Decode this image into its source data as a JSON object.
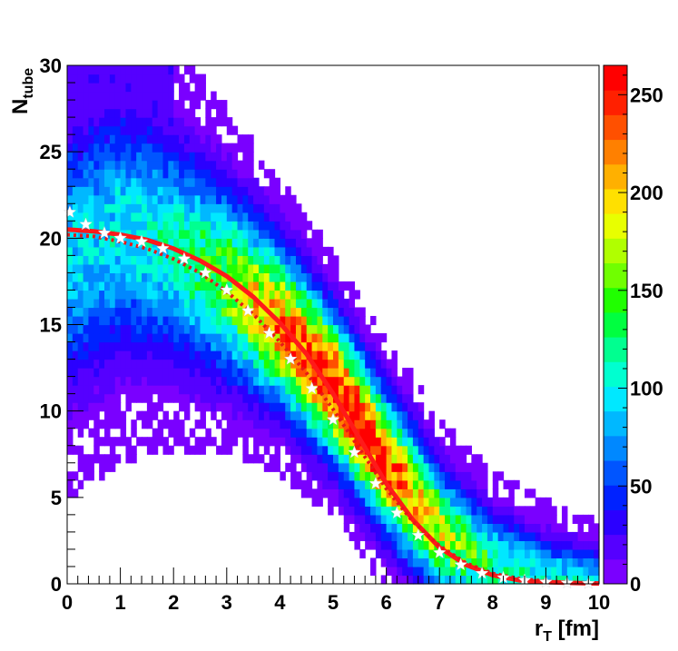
{
  "chart_data": {
    "type": "heatmap",
    "title": "",
    "xlabel": "r",
    "xlabel_sub": "T",
    "xlabel_unit": " [fm]",
    "ylabel": "N",
    "ylabel_sub": "tube",
    "xlim": [
      0,
      10
    ],
    "ylim": [
      0,
      30
    ],
    "x_ticks": [
      0,
      1,
      2,
      3,
      4,
      5,
      6,
      7,
      8,
      9,
      10
    ],
    "y_ticks": [
      0,
      5,
      10,
      15,
      20,
      25,
      30
    ],
    "grid": false,
    "colorbar": {
      "range": [
        0,
        265
      ],
      "ticks": [
        0,
        50,
        100,
        150,
        200,
        250
      ],
      "palette": [
        "#7a00ff",
        "#5500ff",
        "#2b00ff",
        "#0022ff",
        "#0055ff",
        "#0088ff",
        "#00b8ff",
        "#00e8ff",
        "#00ffd0",
        "#00ff90",
        "#00ff40",
        "#20ff00",
        "#70ff00",
        "#b0ff00",
        "#e8ff00",
        "#ffe000",
        "#ffb000",
        "#ff8000",
        "#ff5000",
        "#ff2000",
        "#ff0000"
      ]
    },
    "density_ridge": {
      "x": [
        0,
        1,
        2,
        3,
        4,
        5,
        6,
        7,
        8,
        9,
        10
      ],
      "y": [
        19.0,
        20.5,
        19.5,
        17.5,
        15.0,
        11.5,
        7.0,
        3.0,
        1.0,
        0.3,
        0.1
      ]
    },
    "series": [
      {
        "style": "solid-red",
        "x": [
          0,
          0.5,
          1,
          1.5,
          2,
          2.5,
          3,
          3.5,
          4,
          4.5,
          5,
          5.5,
          6,
          6.5,
          7,
          7.5,
          8,
          8.5,
          9,
          9.5,
          10
        ],
        "y": [
          20.5,
          20.4,
          20.2,
          19.9,
          19.4,
          18.7,
          17.8,
          16.6,
          15.1,
          13.3,
          11.0,
          8.4,
          5.8,
          3.7,
          2.1,
          1.1,
          0.5,
          0.2,
          0.1,
          0.05,
          0.02
        ]
      },
      {
        "style": "dotted-red",
        "x": [
          0,
          0.5,
          1,
          1.5,
          2,
          2.5,
          3,
          3.5,
          4,
          4.5,
          5,
          5.5,
          6,
          6.5,
          7,
          7.5,
          8,
          8.5,
          9,
          9.5,
          10
        ],
        "y": [
          20.2,
          20.1,
          19.8,
          19.4,
          18.8,
          18.0,
          16.9,
          15.6,
          14.0,
          12.2,
          10.1,
          7.8,
          5.5,
          3.6,
          2.2,
          1.2,
          0.6,
          0.3,
          0.15,
          0.07,
          0.03
        ]
      },
      {
        "style": "white-stars",
        "x": [
          0.05,
          0.35,
          0.7,
          1.0,
          1.4,
          1.8,
          2.2,
          2.6,
          3.0,
          3.4,
          3.8,
          4.2,
          4.6,
          5.0,
          5.4,
          5.8,
          6.2,
          6.6,
          7.0,
          7.4,
          7.8,
          8.2,
          8.6,
          9.0,
          9.4,
          9.8
        ],
        "y": [
          21.5,
          20.8,
          20.3,
          20.0,
          19.8,
          19.4,
          18.8,
          18.0,
          17.0,
          15.8,
          14.5,
          13.0,
          11.3,
          9.5,
          7.6,
          5.8,
          4.1,
          2.8,
          1.8,
          1.1,
          0.6,
          0.35,
          0.2,
          0.1,
          0.05,
          0.02
        ]
      }
    ]
  }
}
